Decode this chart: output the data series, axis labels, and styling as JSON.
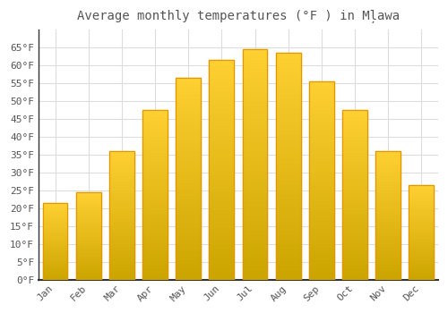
{
  "title": "Average monthly temperatures (°F ) in Mļawa",
  "months": [
    "Jan",
    "Feb",
    "Mar",
    "Apr",
    "May",
    "Jun",
    "Jul",
    "Aug",
    "Sep",
    "Oct",
    "Nov",
    "Dec"
  ],
  "values": [
    21.5,
    24.5,
    36,
    47.5,
    56.5,
    61.5,
    64.5,
    63.5,
    55.5,
    47.5,
    36,
    26.5
  ],
  "bar_color_bottom": "#FFA500",
  "bar_color_top": "#FFD050",
  "bar_edge_color": "#E89400",
  "background_color": "#FFFFFF",
  "plot_bg_color": "#FFFFFF",
  "grid_color": "#DDDDDD",
  "text_color": "#555555",
  "axis_color": "#333333",
  "ylim": [
    0,
    70
  ],
  "yticks": [
    0,
    5,
    10,
    15,
    20,
    25,
    30,
    35,
    40,
    45,
    50,
    55,
    60,
    65
  ],
  "title_fontsize": 10,
  "tick_fontsize": 8,
  "font_family": "monospace"
}
